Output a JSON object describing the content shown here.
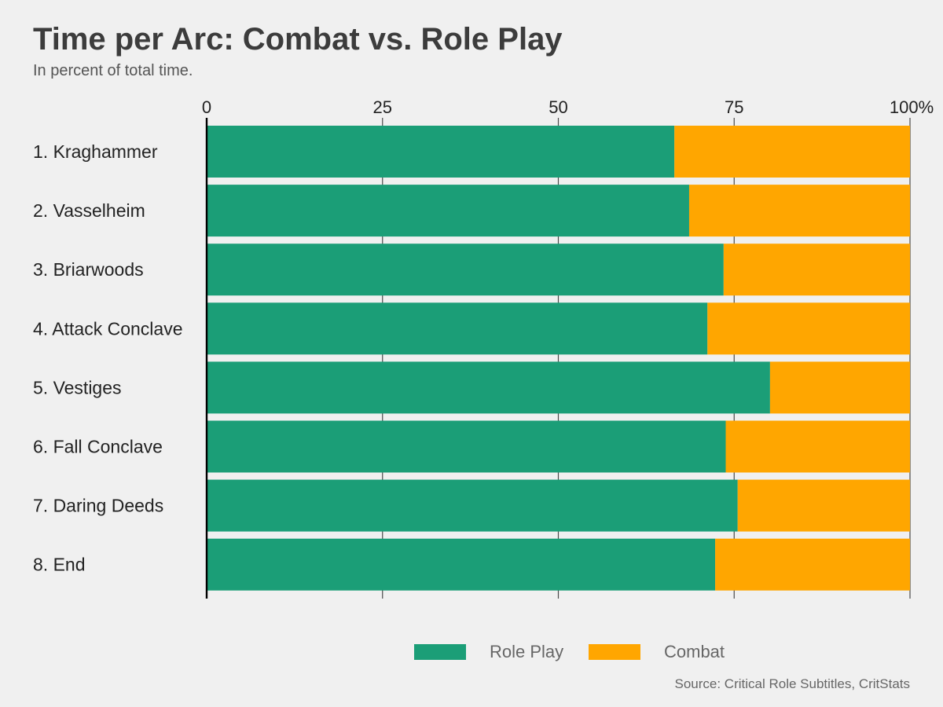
{
  "chart_data": {
    "type": "bar",
    "orientation": "horizontal",
    "stacked": true,
    "title": "Time per Arc: Combat vs. Role Play",
    "subtitle": "In percent of total time.",
    "categories": [
      "1. Kraghammer",
      "2. Vasselheim",
      "3. Briarwoods",
      "4. Attack Conclave",
      "5. Vestiges",
      "6. Fall Conclave",
      "7. Daring Deeds",
      "8. End"
    ],
    "series": [
      {
        "name": "Role Play",
        "color": "#1b9e77",
        "values": [
          66.5,
          68.6,
          73.5,
          71.2,
          80.1,
          73.8,
          75.5,
          72.3
        ]
      },
      {
        "name": "Combat",
        "color": "#ffa600",
        "values": [
          33.5,
          31.4,
          26.5,
          28.8,
          19.9,
          26.2,
          24.5,
          27.7
        ]
      }
    ],
    "x_ticks": [
      "0",
      "25",
      "50",
      "75",
      "100%"
    ],
    "xlim": [
      0,
      100
    ],
    "grid": true,
    "legend_position": "bottom",
    "source": "Source: Critical Role Subtitles, CritStats"
  }
}
